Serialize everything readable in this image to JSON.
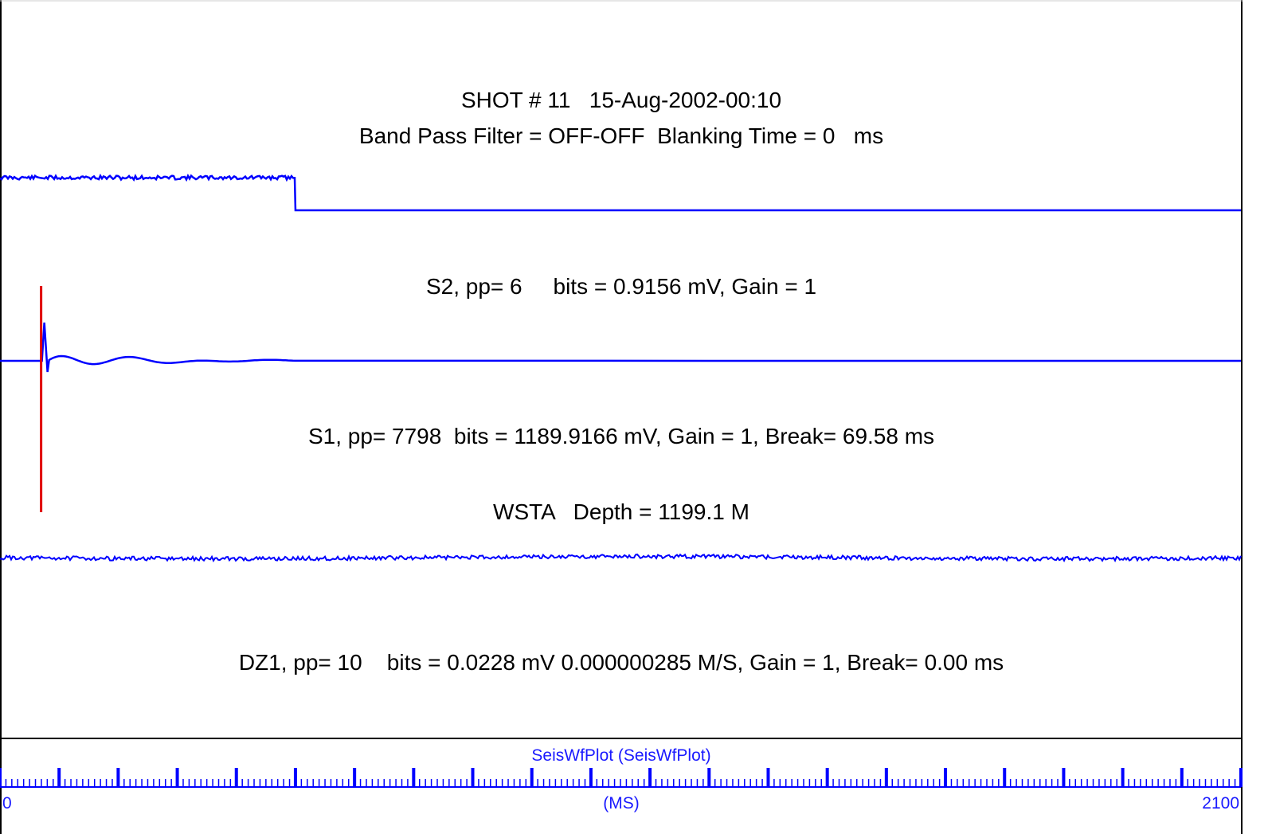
{
  "header": {
    "shot_line": "SHOT # 11   15-Aug-2002-00:10",
    "filter_line": "Band Pass Filter = OFF-OFF  Blanking Time = 0   ms"
  },
  "channels": [
    {
      "label": "S2, pp= 6     bits = 0.9156 mV, Gain = 1"
    },
    {
      "label": "S1, pp= 7798  bits = 1189.9166 mV, Gain = 1, Break= 69.58 ms"
    },
    {
      "label": "WSTA   Depth = 1199.1 M"
    },
    {
      "label": "DZ1, pp= 10    bits = 0.0228 mV 0.000000285 M/S, Gain = 1, Break= 0.00 ms"
    }
  ],
  "footer": {
    "title": "SeisWfPlot (SeisWfPlot)",
    "axis_unit": "(MS)",
    "axis_min_label": "0",
    "axis_max_label": "2100"
  },
  "colors": {
    "trace": "#0000ff",
    "break_marker": "#e00000",
    "axis_text": "#1a1aff",
    "frame": "#000000"
  },
  "chart_data": {
    "type": "line",
    "title": "SHOT # 11   15-Aug-2002-00:10",
    "xlabel": "(MS)",
    "xlim": [
      0,
      2100
    ],
    "major_tick_interval_ms": 100,
    "minor_tick_interval_ms": 10,
    "series": [
      {
        "name": "S2",
        "kind": "step",
        "high_until_ms": 500,
        "noise": true
      },
      {
        "name": "S1",
        "kind": "pulse",
        "pulse_ms": 75,
        "decay_ms": 500
      },
      {
        "name": "DZ1",
        "kind": "noise"
      }
    ],
    "break_marker_ms": 69.58
  }
}
